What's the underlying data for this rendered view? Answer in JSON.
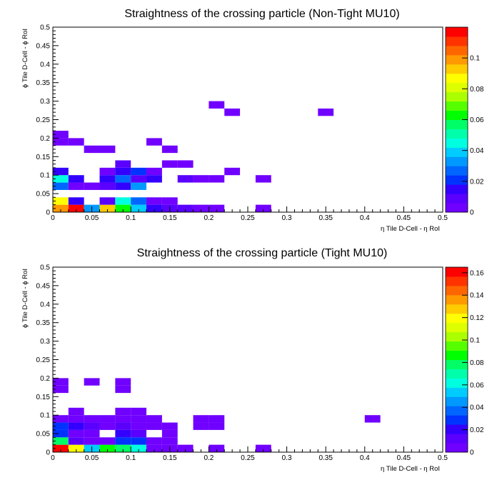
{
  "colors": {
    "palette": [
      "#7000ff",
      "#5a00ff",
      "#3300ff",
      "#0033ff",
      "#0066ff",
      "#0099ff",
      "#00ccff",
      "#00ffe0",
      "#00ffaa",
      "#00ff66",
      "#00ff00",
      "#55ff00",
      "#aaff00",
      "#ddff00",
      "#ffff00",
      "#ffcc00",
      "#ff9900",
      "#ff6600",
      "#ff3300",
      "#ff0000"
    ]
  },
  "chart_data": [
    {
      "type": "heatmap",
      "title": "Straightness of the crossing particle (Non-Tight MU10)",
      "xlabel": "η Tile D-Cell -   η RoI",
      "ylabel": "ϕ Tile D-Cell -   ϕ RoI",
      "xlim": [
        0,
        0.5
      ],
      "ylim": [
        0,
        0.5
      ],
      "bin_size": 0.02,
      "x_ticks": [
        "0",
        "0.05",
        "0.1",
        "0.15",
        "0.2",
        "0.25",
        "0.3",
        "0.35",
        "0.4",
        "0.45",
        "0.5"
      ],
      "y_ticks": [
        "0",
        "0.05",
        "0.1",
        "0.15",
        "0.2",
        "0.25",
        "0.3",
        "0.35",
        "0.4",
        "0.45",
        "0.5"
      ],
      "z_range": [
        0,
        0.12
      ],
      "z_ticks": [
        "0",
        "0.02",
        "0.04",
        "0.06",
        "0.08",
        "0.1"
      ],
      "z_tick_values": [
        0,
        0.02,
        0.04,
        0.06,
        0.08,
        0.1
      ],
      "bins": [
        {
          "x": 0.0,
          "y": 0.0,
          "z": 0.1
        },
        {
          "x": 0.02,
          "y": 0.0,
          "z": 0.12
        },
        {
          "x": 0.04,
          "y": 0.0,
          "z": 0.03
        },
        {
          "x": 0.06,
          "y": 0.0,
          "z": 0.09
        },
        {
          "x": 0.08,
          "y": 0.0,
          "z": 0.06
        },
        {
          "x": 0.1,
          "y": 0.0,
          "z": 0.04
        },
        {
          "x": 0.12,
          "y": 0.0,
          "z": 0.015
        },
        {
          "x": 0.14,
          "y": 0.0,
          "z": 0.007
        },
        {
          "x": 0.16,
          "y": 0.0,
          "z": 0.01
        },
        {
          "x": 0.18,
          "y": 0.0,
          "z": 0.005
        },
        {
          "x": 0.2,
          "y": 0.0,
          "z": 0.005
        },
        {
          "x": 0.26,
          "y": 0.0,
          "z": 0.005
        },
        {
          "x": 0.0,
          "y": 0.02,
          "z": 0.085
        },
        {
          "x": 0.02,
          "y": 0.02,
          "z": 0.012
        },
        {
          "x": 0.06,
          "y": 0.02,
          "z": 0.006
        },
        {
          "x": 0.08,
          "y": 0.02,
          "z": 0.045
        },
        {
          "x": 0.1,
          "y": 0.02,
          "z": 0.025
        },
        {
          "x": 0.12,
          "y": 0.02,
          "z": 0.005
        },
        {
          "x": 0.14,
          "y": 0.02,
          "z": 0.005
        },
        {
          "x": 0.0,
          "y": 0.06,
          "z": 0.025
        },
        {
          "x": 0.02,
          "y": 0.06,
          "z": 0.004
        },
        {
          "x": 0.04,
          "y": 0.06,
          "z": 0.004
        },
        {
          "x": 0.06,
          "y": 0.06,
          "z": 0.006
        },
        {
          "x": 0.08,
          "y": 0.06,
          "z": 0.012
        },
        {
          "x": 0.1,
          "y": 0.06,
          "z": 0.032
        },
        {
          "x": 0.0,
          "y": 0.08,
          "z": 0.042
        },
        {
          "x": 0.02,
          "y": 0.08,
          "z": 0.012
        },
        {
          "x": 0.06,
          "y": 0.08,
          "z": 0.015
        },
        {
          "x": 0.08,
          "y": 0.08,
          "z": 0.025
        },
        {
          "x": 0.1,
          "y": 0.08,
          "z": 0.01
        },
        {
          "x": 0.12,
          "y": 0.08,
          "z": 0.012
        },
        {
          "x": 0.16,
          "y": 0.08,
          "z": 0.008
        },
        {
          "x": 0.18,
          "y": 0.08,
          "z": 0.005
        },
        {
          "x": 0.2,
          "y": 0.08,
          "z": 0.005
        },
        {
          "x": 0.26,
          "y": 0.08,
          "z": 0.005
        },
        {
          "x": 0.0,
          "y": 0.1,
          "z": 0.015
        },
        {
          "x": 0.06,
          "y": 0.1,
          "z": 0.005
        },
        {
          "x": 0.08,
          "y": 0.1,
          "z": 0.012
        },
        {
          "x": 0.1,
          "y": 0.1,
          "z": 0.018
        },
        {
          "x": 0.12,
          "y": 0.1,
          "z": 0.004
        },
        {
          "x": 0.22,
          "y": 0.1,
          "z": 0.005
        },
        {
          "x": 0.08,
          "y": 0.12,
          "z": 0.006
        },
        {
          "x": 0.14,
          "y": 0.12,
          "z": 0.005
        },
        {
          "x": 0.16,
          "y": 0.12,
          "z": 0.005
        },
        {
          "x": 0.04,
          "y": 0.16,
          "z": 0.005
        },
        {
          "x": 0.06,
          "y": 0.16,
          "z": 0.005
        },
        {
          "x": 0.14,
          "y": 0.16,
          "z": 0.005
        },
        {
          "x": 0.0,
          "y": 0.18,
          "z": 0.005
        },
        {
          "x": 0.02,
          "y": 0.18,
          "z": 0.005
        },
        {
          "x": 0.12,
          "y": 0.18,
          "z": 0.005
        },
        {
          "x": 0.0,
          "y": 0.2,
          "z": 0.005
        },
        {
          "x": 0.22,
          "y": 0.26,
          "z": 0.005
        },
        {
          "x": 0.34,
          "y": 0.26,
          "z": 0.005
        },
        {
          "x": 0.2,
          "y": 0.28,
          "z": 0.005
        }
      ]
    },
    {
      "type": "heatmap",
      "title": "Straightness of the crossing particle (Tight MU10)",
      "xlabel": "η Tile D-Cell -   η RoI",
      "ylabel": "ϕ Tile D-Cell -   ϕ RoI",
      "xlim": [
        0,
        0.5
      ],
      "ylim": [
        0,
        0.5
      ],
      "bin_size": 0.02,
      "x_ticks": [
        "0",
        "0.05",
        "0.1",
        "0.15",
        "0.2",
        "0.25",
        "0.3",
        "0.35",
        "0.4",
        "0.45",
        "0.5"
      ],
      "y_ticks": [
        "0",
        "0.05",
        "0.1",
        "0.15",
        "0.2",
        "0.25",
        "0.3",
        "0.35",
        "0.4",
        "0.45",
        "0.5"
      ],
      "z_range": [
        0,
        0.165
      ],
      "z_ticks": [
        "0",
        "0.02",
        "0.04",
        "0.06",
        "0.08",
        "0.1",
        "0.12",
        "0.14",
        "0.16"
      ],
      "z_tick_values": [
        0,
        0.02,
        0.04,
        0.06,
        0.08,
        0.1,
        0.12,
        0.14,
        0.16
      ],
      "bins": [
        {
          "x": 0.0,
          "y": 0.0,
          "z": 0.16
        },
        {
          "x": 0.02,
          "y": 0.0,
          "z": 0.12
        },
        {
          "x": 0.04,
          "y": 0.0,
          "z": 0.05
        },
        {
          "x": 0.06,
          "y": 0.0,
          "z": 0.09
        },
        {
          "x": 0.08,
          "y": 0.0,
          "z": 0.08
        },
        {
          "x": 0.1,
          "y": 0.0,
          "z": 0.06
        },
        {
          "x": 0.12,
          "y": 0.0,
          "z": 0.008
        },
        {
          "x": 0.14,
          "y": 0.0,
          "z": 0.006
        },
        {
          "x": 0.16,
          "y": 0.0,
          "z": 0.006
        },
        {
          "x": 0.2,
          "y": 0.0,
          "z": 0.006
        },
        {
          "x": 0.26,
          "y": 0.0,
          "z": 0.006
        },
        {
          "x": 0.0,
          "y": 0.02,
          "z": 0.08
        },
        {
          "x": 0.02,
          "y": 0.02,
          "z": 0.012
        },
        {
          "x": 0.04,
          "y": 0.02,
          "z": 0.008
        },
        {
          "x": 0.06,
          "y": 0.02,
          "z": 0.008
        },
        {
          "x": 0.08,
          "y": 0.02,
          "z": 0.025
        },
        {
          "x": 0.1,
          "y": 0.02,
          "z": 0.025
        },
        {
          "x": 0.12,
          "y": 0.02,
          "z": 0.006
        },
        {
          "x": 0.14,
          "y": 0.02,
          "z": 0.006
        },
        {
          "x": 0.0,
          "y": 0.04,
          "z": 0.025
        },
        {
          "x": 0.02,
          "y": 0.04,
          "z": 0.006
        },
        {
          "x": 0.04,
          "y": 0.04,
          "z": 0.006
        },
        {
          "x": 0.08,
          "y": 0.04,
          "z": 0.018
        },
        {
          "x": 0.1,
          "y": 0.04,
          "z": 0.012
        },
        {
          "x": 0.14,
          "y": 0.04,
          "z": 0.006
        },
        {
          "x": 0.0,
          "y": 0.06,
          "z": 0.03
        },
        {
          "x": 0.02,
          "y": 0.06,
          "z": 0.018
        },
        {
          "x": 0.04,
          "y": 0.06,
          "z": 0.012
        },
        {
          "x": 0.06,
          "y": 0.06,
          "z": 0.008
        },
        {
          "x": 0.08,
          "y": 0.06,
          "z": 0.012
        },
        {
          "x": 0.1,
          "y": 0.06,
          "z": 0.008
        },
        {
          "x": 0.12,
          "y": 0.06,
          "z": 0.006
        },
        {
          "x": 0.14,
          "y": 0.06,
          "z": 0.006
        },
        {
          "x": 0.18,
          "y": 0.06,
          "z": 0.006
        },
        {
          "x": 0.2,
          "y": 0.06,
          "z": 0.006
        },
        {
          "x": 0.0,
          "y": 0.08,
          "z": 0.008
        },
        {
          "x": 0.02,
          "y": 0.08,
          "z": 0.006
        },
        {
          "x": 0.04,
          "y": 0.08,
          "z": 0.006
        },
        {
          "x": 0.06,
          "y": 0.08,
          "z": 0.006
        },
        {
          "x": 0.08,
          "y": 0.08,
          "z": 0.008
        },
        {
          "x": 0.1,
          "y": 0.08,
          "z": 0.006
        },
        {
          "x": 0.12,
          "y": 0.08,
          "z": 0.006
        },
        {
          "x": 0.18,
          "y": 0.08,
          "z": 0.006
        },
        {
          "x": 0.2,
          "y": 0.08,
          "z": 0.006
        },
        {
          "x": 0.4,
          "y": 0.08,
          "z": 0.006
        },
        {
          "x": 0.02,
          "y": 0.1,
          "z": 0.006
        },
        {
          "x": 0.08,
          "y": 0.1,
          "z": 0.006
        },
        {
          "x": 0.1,
          "y": 0.1,
          "z": 0.006
        },
        {
          "x": 0.0,
          "y": 0.16,
          "z": 0.006
        },
        {
          "x": 0.08,
          "y": 0.16,
          "z": 0.006
        },
        {
          "x": 0.0,
          "y": 0.18,
          "z": 0.006
        },
        {
          "x": 0.04,
          "y": 0.18,
          "z": 0.006
        },
        {
          "x": 0.08,
          "y": 0.18,
          "z": 0.006
        }
      ]
    }
  ]
}
